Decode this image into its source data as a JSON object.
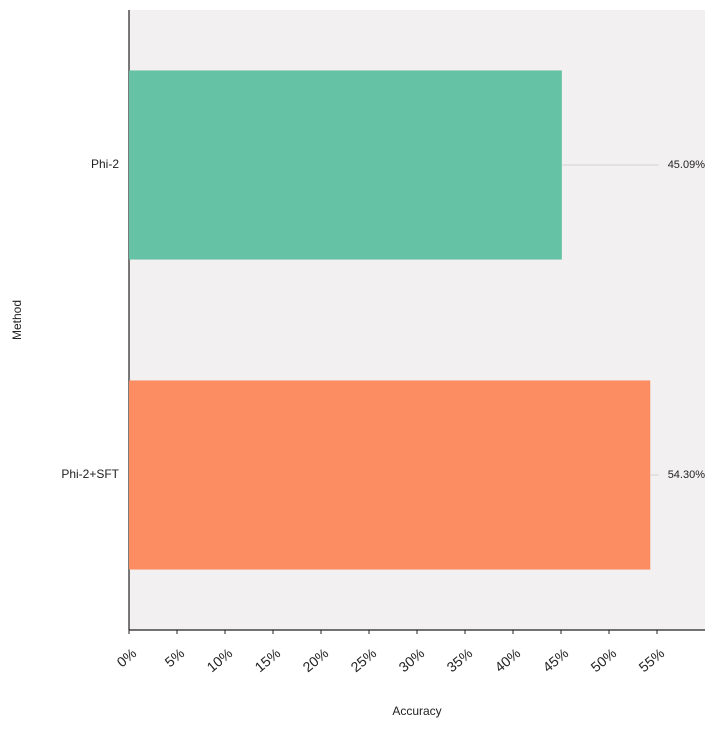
{
  "chart_data": {
    "type": "bar",
    "orientation": "horizontal",
    "xlabel": "Accuracy",
    "ylabel": "Method",
    "categories": [
      "Phi-2",
      "Phi-2+SFT"
    ],
    "values": [
      45.09,
      54.3
    ],
    "value_labels": [
      "45.09%",
      "54.30%"
    ],
    "colors": [
      "#66c2a5",
      "#fc8d62"
    ],
    "xlim": [
      0,
      60
    ],
    "xticks": [
      {
        "value": 0,
        "label": "0%"
      },
      {
        "value": 5,
        "label": "5%"
      },
      {
        "value": 10,
        "label": "10%"
      },
      {
        "value": 15,
        "label": "15%"
      },
      {
        "value": 20,
        "label": "20%"
      },
      {
        "value": 25,
        "label": "25%"
      },
      {
        "value": 30,
        "label": "30%"
      },
      {
        "value": 35,
        "label": "35%"
      },
      {
        "value": 40,
        "label": "40%"
      },
      {
        "value": 45,
        "label": "45%"
      },
      {
        "value": 50,
        "label": "50%"
      },
      {
        "value": 55,
        "label": "55%"
      }
    ],
    "grid": false
  }
}
